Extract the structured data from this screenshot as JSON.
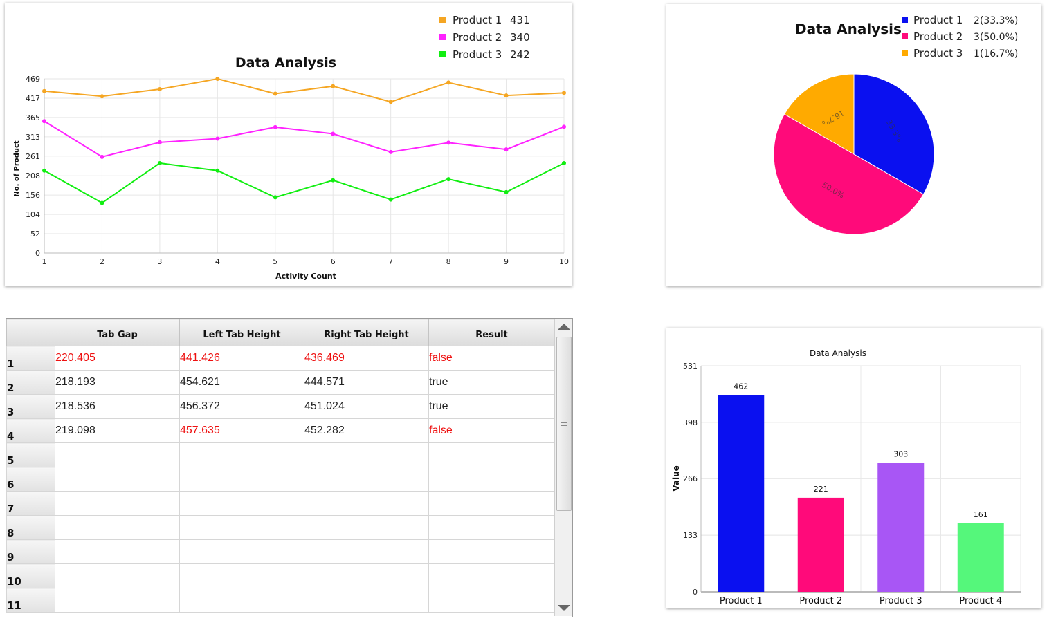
{
  "colors": {
    "product1_line": "#f5a623",
    "product2_line": "#ff22ff",
    "product3_line": "#11ee11",
    "pie_product1": "#0a10f0",
    "pie_product2": "#ff0a7a",
    "pie_product3": "#ffaa00",
    "bar_product1": "#0a10f0",
    "bar_product2": "#ff0a7a",
    "bar_product3": "#a856f5",
    "bar_product4": "#55f77b",
    "table_error": "#ee1111"
  },
  "chart_data": [
    {
      "type": "line",
      "title": "Data Analysis",
      "xlabel": "Activity Count",
      "ylabel": "No. of Product",
      "x": [
        1,
        2,
        3,
        4,
        5,
        6,
        7,
        8,
        9,
        10
      ],
      "ylim": [
        0,
        469
      ],
      "yticks": [
        "0",
        "52",
        "104",
        "156",
        "208",
        "261",
        "313",
        "365",
        "417",
        "469"
      ],
      "xticks": [
        "1",
        "2",
        "3",
        "4",
        "5",
        "6",
        "7",
        "8",
        "9",
        "10"
      ],
      "grid": true,
      "legend_position": "top-right",
      "series": [
        {
          "name": "Product 1",
          "total": "431",
          "color": "#f5a623",
          "values": [
            436,
            422,
            441,
            469,
            429,
            449,
            407,
            459,
            424,
            431
          ]
        },
        {
          "name": "Product 2",
          "total": "340",
          "color": "#ff22ff",
          "values": [
            355,
            259,
            298,
            308,
            339,
            321,
            272,
            297,
            279,
            340
          ]
        },
        {
          "name": "Product 3",
          "total": "242",
          "color": "#11ee11",
          "values": [
            222,
            135,
            242,
            222,
            150,
            196,
            144,
            199,
            164,
            242
          ]
        }
      ]
    },
    {
      "type": "pie",
      "title": "Data Analysis",
      "legend_position": "top-right",
      "slices": [
        {
          "name": "Product 1",
          "value": 2,
          "legend": "2(33.3%)",
          "label": "33.3%",
          "color": "#0a10f0"
        },
        {
          "name": "Product 2",
          "value": 3,
          "legend": "3(50.0%)",
          "label": "50.0%",
          "color": "#ff0a7a"
        },
        {
          "name": "Product 3",
          "value": 1,
          "legend": "1(16.7%)",
          "label": "16.7%",
          "color": "#ffaa00"
        }
      ]
    },
    {
      "type": "bar",
      "title": "Data Analysis",
      "ylabel": "Value",
      "ylim": [
        0,
        531
      ],
      "yticks": [
        "0",
        "133",
        "266",
        "398",
        "531"
      ],
      "grid": true,
      "categories": [
        "Product 1",
        "Product 2",
        "Product 3",
        "Product 4"
      ],
      "values": [
        462,
        221,
        303,
        161
      ],
      "colors": [
        "#0a10f0",
        "#ff0a7a",
        "#a856f5",
        "#55f77b"
      ]
    }
  ],
  "table": {
    "columns": [
      "Tab Gap",
      "Left Tab Height",
      "Right Tab Height",
      "Result"
    ],
    "rows": [
      {
        "num": "1",
        "cells": [
          "220.405",
          "441.426",
          "436.469",
          "false"
        ],
        "red": [
          true,
          true,
          true,
          true
        ]
      },
      {
        "num": "2",
        "cells": [
          "218.193",
          "454.621",
          "444.571",
          "true"
        ],
        "red": [
          false,
          false,
          false,
          false
        ]
      },
      {
        "num": "3",
        "cells": [
          "218.536",
          "456.372",
          "451.024",
          "true"
        ],
        "red": [
          false,
          false,
          false,
          false
        ]
      },
      {
        "num": "4",
        "cells": [
          "219.098",
          "457.635",
          "452.282",
          "false"
        ],
        "red": [
          false,
          true,
          false,
          true
        ]
      },
      {
        "num": "5",
        "cells": [
          "",
          "",
          "",
          ""
        ],
        "red": [
          false,
          false,
          false,
          false
        ]
      },
      {
        "num": "6",
        "cells": [
          "",
          "",
          "",
          ""
        ],
        "red": [
          false,
          false,
          false,
          false
        ]
      },
      {
        "num": "7",
        "cells": [
          "",
          "",
          "",
          ""
        ],
        "red": [
          false,
          false,
          false,
          false
        ]
      },
      {
        "num": "8",
        "cells": [
          "",
          "",
          "",
          ""
        ],
        "red": [
          false,
          false,
          false,
          false
        ]
      },
      {
        "num": "9",
        "cells": [
          "",
          "",
          "",
          ""
        ],
        "red": [
          false,
          false,
          false,
          false
        ]
      },
      {
        "num": "10",
        "cells": [
          "",
          "",
          "",
          ""
        ],
        "red": [
          false,
          false,
          false,
          false
        ]
      },
      {
        "num": "11",
        "cells": [
          "",
          "",
          "",
          ""
        ],
        "red": [
          false,
          false,
          false,
          false
        ]
      }
    ]
  }
}
